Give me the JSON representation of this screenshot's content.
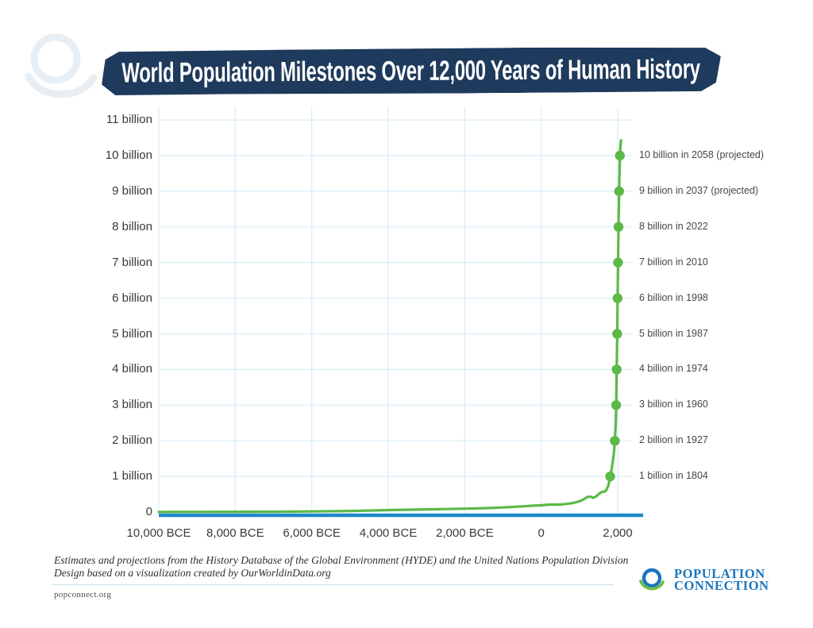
{
  "banner": {
    "title": "World Population Milestones Over 12,000 Years of Human History",
    "bg_color": "#1e3a5c"
  },
  "chart_data": {
    "type": "line",
    "x_ticks": [
      {
        "year": -10000,
        "label": "10,000 BCE"
      },
      {
        "year": -8000,
        "label": "8,000 BCE"
      },
      {
        "year": -6000,
        "label": "6,000 BCE"
      },
      {
        "year": -4000,
        "label": "4,000 BCE"
      },
      {
        "year": -2000,
        "label": "2,000 BCE"
      },
      {
        "year": 0,
        "label": "0"
      },
      {
        "year": 2000,
        "label": "2,000"
      }
    ],
    "y_ticks": [
      {
        "value": 0,
        "label": "0"
      },
      {
        "value": 1,
        "label": "1 billion"
      },
      {
        "value": 2,
        "label": "2 billion"
      },
      {
        "value": 3,
        "label": "3 billion"
      },
      {
        "value": 4,
        "label": "4 billion"
      },
      {
        "value": 5,
        "label": "5 billion"
      },
      {
        "value": 6,
        "label": "6 billion"
      },
      {
        "value": 7,
        "label": "7 billion"
      },
      {
        "value": 8,
        "label": "8 billion"
      },
      {
        "value": 9,
        "label": "9 billion"
      },
      {
        "value": 10,
        "label": "10 billion"
      },
      {
        "value": 11,
        "label": "11 billion"
      }
    ],
    "series": [
      {
        "name": "world-population-billions",
        "color": "#5cb947",
        "points": [
          [
            -10000,
            0.004
          ],
          [
            -9000,
            0.006
          ],
          [
            -8000,
            0.009
          ],
          [
            -7000,
            0.012
          ],
          [
            -6000,
            0.018
          ],
          [
            -5000,
            0.032
          ],
          [
            -4000,
            0.055
          ],
          [
            -3000,
            0.075
          ],
          [
            -2500,
            0.085
          ],
          [
            -2000,
            0.095
          ],
          [
            -1500,
            0.11
          ],
          [
            -1000,
            0.13
          ],
          [
            -500,
            0.16
          ],
          [
            -200,
            0.18
          ],
          [
            0,
            0.19
          ],
          [
            200,
            0.21
          ],
          [
            400,
            0.21
          ],
          [
            600,
            0.22
          ],
          [
            800,
            0.25
          ],
          [
            1000,
            0.3
          ],
          [
            1100,
            0.35
          ],
          [
            1200,
            0.42
          ],
          [
            1250,
            0.43
          ],
          [
            1300,
            0.43
          ],
          [
            1350,
            0.4
          ],
          [
            1400,
            0.42
          ],
          [
            1450,
            0.45
          ],
          [
            1500,
            0.5
          ],
          [
            1550,
            0.54
          ],
          [
            1600,
            0.57
          ],
          [
            1650,
            0.57
          ],
          [
            1700,
            0.61
          ],
          [
            1750,
            0.73
          ],
          [
            1775,
            0.82
          ],
          [
            1800,
            0.96
          ],
          [
            1804,
            1.0
          ],
          [
            1825,
            1.1
          ],
          [
            1850,
            1.27
          ],
          [
            1875,
            1.44
          ],
          [
            1900,
            1.65
          ],
          [
            1927,
            2.0
          ],
          [
            1940,
            2.3
          ],
          [
            1950,
            2.54
          ],
          [
            1960,
            3.0
          ],
          [
            1974,
            4.0
          ],
          [
            1987,
            5.0
          ],
          [
            1998,
            6.0
          ],
          [
            2010,
            7.0
          ],
          [
            2022,
            8.0
          ],
          [
            2037,
            9.0
          ],
          [
            2058,
            10.0
          ],
          [
            2075,
            10.3
          ],
          [
            2088,
            10.43
          ]
        ]
      }
    ],
    "milestones": [
      {
        "value_billions": 1,
        "year": 1804,
        "label": "1 billion in 1804"
      },
      {
        "value_billions": 2,
        "year": 1927,
        "label": "2 billion in 1927"
      },
      {
        "value_billions": 3,
        "year": 1960,
        "label": "3 billion in 1960"
      },
      {
        "value_billions": 4,
        "year": 1974,
        "label": "4 billion in 1974"
      },
      {
        "value_billions": 5,
        "year": 1987,
        "label": "5 billion in 1987"
      },
      {
        "value_billions": 6,
        "year": 1998,
        "label": "6 billion in 1998"
      },
      {
        "value_billions": 7,
        "year": 2010,
        "label": "7 billion in 2010"
      },
      {
        "value_billions": 8,
        "year": 2022,
        "label": "8 billion in 2022"
      },
      {
        "value_billions": 9,
        "year": 2037,
        "label": "9 billion in 2037 (projected)"
      },
      {
        "value_billions": 10,
        "year": 2058,
        "label": "10 billion in 2058 (projected)"
      }
    ],
    "ylim": [
      0,
      11.4
    ],
    "xlim_years": [
      -10000,
      2660
    ],
    "grid": true,
    "legend": "none",
    "colors": {
      "line": "#5cb947",
      "axis": "#1e88c8",
      "grid": "#daedf8"
    }
  },
  "footer": {
    "source_line1": "Estimates and projections from the History Database of the Global Environment (HYDE) and the United Nations Population Division",
    "source_line2": "Design based on a visualization created by OurWorldinData.org",
    "website": "popconnect.org"
  },
  "brand": {
    "name_line1": "POPULATION",
    "name_line2": "CONNECTION",
    "blue": "#1b75bc",
    "green": "#6abf4b",
    "watermark_color": "#e8eff4"
  }
}
